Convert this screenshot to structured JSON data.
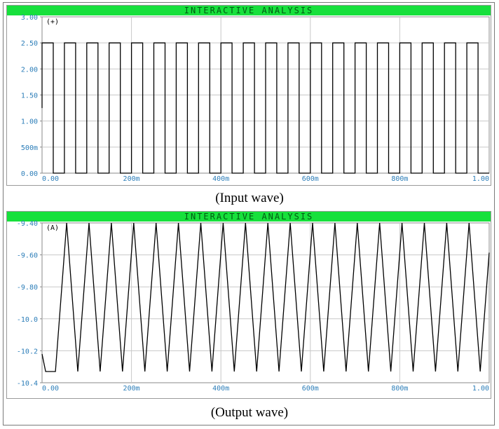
{
  "chart_data": [
    {
      "type": "line",
      "panel_title": "INTERACTIVE ANALYSIS",
      "trace_label": "(+)",
      "caption": "(Input wave)",
      "y_ticks": [
        "3.00",
        "2.50",
        "2.00",
        "1.50",
        "1.00",
        "500m",
        "0.00"
      ],
      "x_ticks": [
        "0.00",
        "200m",
        "400m",
        "600m",
        "800m",
        "1.00"
      ],
      "xlim": [
        0,
        1.0
      ],
      "ylim": [
        0,
        3.0
      ],
      "grid": true,
      "waveform": "square",
      "period": 0.05,
      "high": 2.5,
      "low": 0.0,
      "duty": 0.5,
      "start_level": "rising",
      "colors": {
        "title_bar": "#17e03c",
        "tick_text": "#2b7db8",
        "trace": "#000000",
        "grid": "#c8c8c8"
      }
    },
    {
      "type": "line",
      "panel_title": "INTERACTIVE ANALYSIS",
      "trace_label": "(A)",
      "caption": "(Output wave)",
      "y_ticks": [
        "-9.40",
        "-9.60",
        "-9.80",
        "-10.0",
        "-10.2",
        "-10.4"
      ],
      "x_ticks": [
        "0.00",
        "200m",
        "400m",
        "600m",
        "800m",
        "1.00"
      ],
      "xlim": [
        0,
        1.0
      ],
      "ylim": [
        -10.4,
        -9.4
      ],
      "grid": true,
      "waveform": "triangle",
      "period": 0.05,
      "max": -9.4,
      "min": -10.33,
      "initial_points": [
        [
          0.0,
          -10.22
        ],
        [
          0.008,
          -10.33
        ],
        [
          0.03,
          -10.33
        ]
      ],
      "colors": {
        "title_bar": "#17e03c",
        "tick_text": "#2b7db8",
        "trace": "#000000",
        "grid": "#c8c8c8"
      }
    }
  ]
}
